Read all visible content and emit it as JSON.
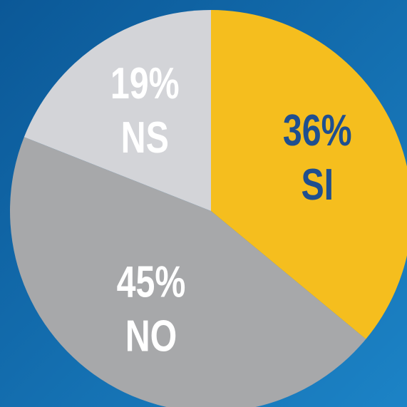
{
  "chart_data": {
    "type": "pie",
    "categories": [
      "SI",
      "NO",
      "NS"
    ],
    "values": [
      36,
      45,
      19
    ],
    "value_labels": [
      "36%",
      "45%",
      "19%"
    ],
    "colors": [
      "#f5be1e",
      "#a7a8aa",
      "#d3d4d8"
    ],
    "label_colors": [
      "#1f4f8f",
      "#ffffff",
      "#ffffff"
    ]
  }
}
